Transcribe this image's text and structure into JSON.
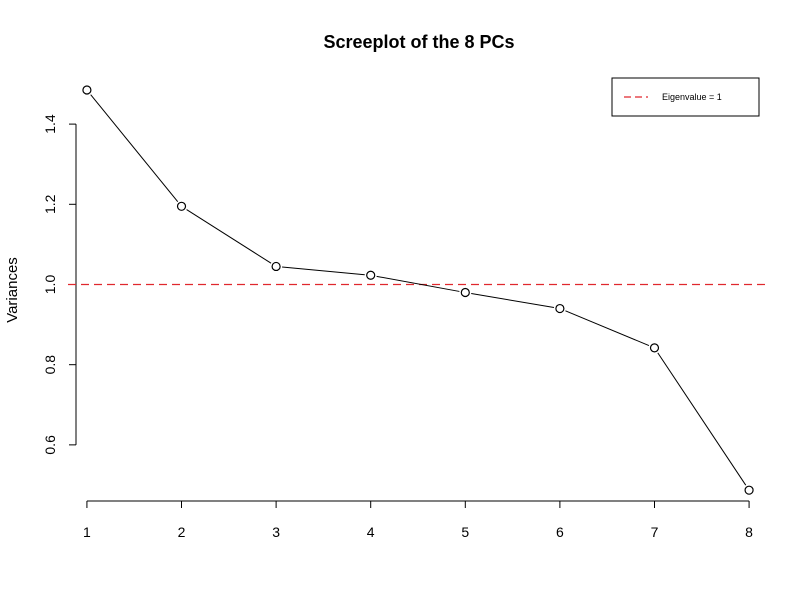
{
  "chart_data": {
    "type": "line",
    "title": "Screeplot of the 8 PCs",
    "xlabel": "",
    "ylabel": "Variances",
    "x": [
      1,
      2,
      3,
      4,
      5,
      6,
      7,
      8
    ],
    "x_ticks": [
      "1",
      "2",
      "3",
      "4",
      "5",
      "6",
      "7",
      "8"
    ],
    "y_ticks": [
      "0.6",
      "0.8",
      "1.0",
      "1.2",
      "1.4"
    ],
    "series": [
      {
        "values": [
          1.485,
          1.195,
          1.045,
          1.023,
          0.98,
          0.94,
          0.842,
          0.487
        ]
      }
    ],
    "xlim": [
      0.8,
      8.2
    ],
    "ylim": [
      0.47,
      1.51
    ],
    "reference_line": {
      "y": 1.0,
      "label": "Eigenvalue = 1",
      "color": "#e0282e",
      "style": "dashed"
    },
    "legend": {
      "position": "top-right",
      "entries": [
        "Eigenvalue = 1"
      ]
    },
    "grid": false,
    "colors": {
      "line": "#000000",
      "reference": "#e0282e"
    }
  }
}
